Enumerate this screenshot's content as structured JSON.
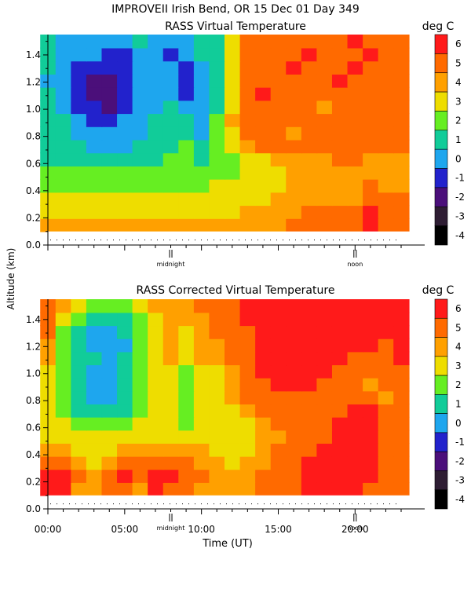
{
  "title": "IMPROVEII  Irish Bend, OR  15 Dec 01 Day 349",
  "ylabel": "Altitude (km)",
  "xlabel": "Time (UT)",
  "chart_data": [
    {
      "type": "heatmap",
      "title": "RASS Virtual Temperature",
      "colorbar_label": "deg C",
      "colorbar_ticks": [
        "6",
        "5",
        "4",
        "3",
        "2",
        "1",
        "0",
        "-1",
        "-2",
        "-3",
        "-4"
      ],
      "x_range_hours": [
        0,
        23
      ],
      "y_range_km": [
        0.1,
        1.55
      ],
      "y_ticks": [
        "0.0",
        "0.2",
        "0.4",
        "0.6",
        "0.8",
        "1.0",
        "1.2",
        "1.4"
      ],
      "markers": [
        {
          "label": "midnight",
          "hour": 8.0
        },
        {
          "label": "noon",
          "hour": 20.0
        }
      ],
      "values_desc": "Temperature field in deg C",
      "x": [
        0,
        1,
        2,
        3,
        4,
        5,
        6,
        7,
        8,
        9,
        10,
        11,
        12,
        13,
        14,
        15,
        16,
        17,
        18,
        19,
        20,
        21,
        22,
        23
      ],
      "y": [
        0.1,
        0.2,
        0.3,
        0.4,
        0.5,
        0.6,
        0.7,
        0.8,
        0.9,
        1.0,
        1.1,
        1.2,
        1.3,
        1.4,
        1.5
      ],
      "z": [
        [
          4,
          4,
          4,
          4,
          4,
          4,
          4,
          4,
          4,
          4,
          4,
          4,
          4,
          4,
          4,
          4,
          5,
          5,
          5,
          5,
          5,
          6,
          5,
          5
        ],
        [
          3,
          3,
          3,
          3,
          3,
          3,
          3,
          3,
          3,
          3,
          3,
          3,
          3,
          4,
          4,
          4,
          4,
          5,
          5,
          5,
          5,
          6,
          5,
          5
        ],
        [
          3,
          3,
          3,
          3,
          3,
          3,
          3,
          3,
          3,
          3,
          3,
          3,
          3,
          3,
          3,
          4,
          4,
          4,
          4,
          4,
          4,
          5,
          5,
          5
        ],
        [
          2,
          2,
          2,
          2,
          2,
          2,
          2,
          2,
          2,
          2,
          2,
          3,
          3,
          3,
          3,
          3,
          4,
          4,
          4,
          4,
          4,
          5,
          4,
          4
        ],
        [
          2,
          2,
          2,
          2,
          2,
          2,
          2,
          2,
          2,
          2,
          2,
          2,
          2,
          3,
          3,
          3,
          4,
          4,
          4,
          4,
          4,
          4,
          4,
          4
        ],
        [
          1,
          1,
          1,
          1,
          1,
          1,
          1,
          1,
          2,
          2,
          1,
          2,
          2,
          3,
          3,
          4,
          4,
          4,
          4,
          5,
          5,
          4,
          4,
          4
        ],
        [
          1,
          1,
          1,
          0,
          0,
          0,
          1,
          1,
          1,
          2,
          1,
          2,
          3,
          4,
          5,
          5,
          5,
          5,
          5,
          5,
          5,
          5,
          5,
          5
        ],
        [
          1,
          1,
          0,
          0,
          0,
          0,
          0,
          1,
          1,
          1,
          0,
          2,
          3,
          5,
          5,
          5,
          4,
          5,
          5,
          5,
          5,
          5,
          5,
          5
        ],
        [
          1,
          1,
          0,
          -1,
          -1,
          0,
          0,
          1,
          1,
          1,
          0,
          2,
          4,
          5,
          5,
          5,
          5,
          5,
          5,
          5,
          5,
          5,
          5,
          5
        ],
        [
          1,
          0,
          -1,
          -1,
          -2,
          -1,
          0,
          0,
          1,
          0,
          0,
          1,
          3,
          5,
          5,
          5,
          5,
          5,
          4,
          5,
          5,
          5,
          5,
          5
        ],
        [
          1,
          0,
          -1,
          -2,
          -2,
          -1,
          0,
          0,
          0,
          -1,
          0,
          1,
          3,
          5,
          6,
          5,
          5,
          5,
          5,
          5,
          5,
          5,
          5,
          5
        ],
        [
          0,
          0,
          -1,
          -2,
          -2,
          -1,
          0,
          0,
          0,
          -1,
          0,
          1,
          3,
          5,
          5,
          5,
          5,
          5,
          5,
          6,
          5,
          5,
          5,
          5
        ],
        [
          1,
          0,
          -1,
          -1,
          -1,
          -1,
          0,
          0,
          0,
          -1,
          0,
          1,
          3,
          5,
          5,
          5,
          6,
          5,
          5,
          5,
          6,
          5,
          5,
          5
        ],
        [
          1,
          0,
          0,
          0,
          -1,
          -1,
          0,
          0,
          -1,
          0,
          1,
          1,
          3,
          5,
          5,
          5,
          5,
          6,
          5,
          5,
          5,
          6,
          5,
          5
        ],
        [
          1,
          0,
          0,
          0,
          0,
          0,
          1,
          0,
          0,
          0,
          1,
          1,
          3,
          5,
          5,
          5,
          5,
          5,
          5,
          5,
          6,
          5,
          5,
          5
        ]
      ]
    },
    {
      "type": "heatmap",
      "title": "RASS Corrected Virtual Temperature",
      "colorbar_label": "deg C",
      "colorbar_ticks": [
        "6",
        "5",
        "4",
        "3",
        "2",
        "1",
        "0",
        "-1",
        "-2",
        "-3",
        "-4"
      ],
      "x_range_hours": [
        0,
        23
      ],
      "y_range_km": [
        0.1,
        1.55
      ],
      "y_ticks": [
        "0.0",
        "0.2",
        "0.4",
        "0.6",
        "0.8",
        "1.0",
        "1.2",
        "1.4"
      ],
      "x_ticks": [
        "00:00",
        "05:00",
        "10:00",
        "15:00",
        "20:00"
      ],
      "markers": [
        {
          "label": "midnight",
          "hour": 8.0
        },
        {
          "label": "noon",
          "hour": 20.0
        }
      ],
      "x": [
        0,
        1,
        2,
        3,
        4,
        5,
        6,
        7,
        8,
        9,
        10,
        11,
        12,
        13,
        14,
        15,
        16,
        17,
        18,
        19,
        20,
        21,
        22,
        23
      ],
      "y": [
        0.1,
        0.2,
        0.3,
        0.4,
        0.5,
        0.6,
        0.7,
        0.8,
        0.9,
        1.0,
        1.1,
        1.2,
        1.3,
        1.4,
        1.5
      ],
      "z": [
        [
          6,
          6,
          4,
          4,
          5,
          5,
          4,
          6,
          5,
          5,
          4,
          4,
          4,
          4,
          5,
          5,
          5,
          6,
          6,
          6,
          6,
          5,
          5,
          5
        ],
        [
          6,
          6,
          5,
          4,
          5,
          6,
          5,
          6,
          6,
          5,
          5,
          4,
          4,
          4,
          5,
          5,
          5,
          6,
          6,
          6,
          6,
          6,
          5,
          5
        ],
        [
          5,
          5,
          4,
          3,
          4,
          5,
          5,
          5,
          5,
          5,
          4,
          4,
          3,
          4,
          4,
          5,
          5,
          6,
          6,
          6,
          6,
          6,
          5,
          5
        ],
        [
          4,
          4,
          3,
          3,
          3,
          4,
          4,
          4,
          4,
          4,
          4,
          3,
          3,
          3,
          4,
          5,
          5,
          5,
          6,
          6,
          6,
          6,
          5,
          5
        ],
        [
          3,
          3,
          3,
          3,
          3,
          3,
          3,
          3,
          3,
          3,
          3,
          3,
          3,
          3,
          4,
          4,
          5,
          5,
          5,
          6,
          6,
          6,
          5,
          5
        ],
        [
          3,
          3,
          2,
          2,
          2,
          2,
          3,
          3,
          3,
          2,
          3,
          3,
          3,
          3,
          4,
          5,
          5,
          5,
          5,
          6,
          6,
          6,
          5,
          5
        ],
        [
          3,
          2,
          1,
          1,
          1,
          1,
          2,
          3,
          3,
          2,
          3,
          3,
          3,
          4,
          5,
          5,
          5,
          5,
          5,
          5,
          6,
          6,
          5,
          5
        ],
        [
          3,
          2,
          1,
          0,
          0,
          1,
          2,
          3,
          3,
          2,
          3,
          3,
          4,
          5,
          5,
          5,
          5,
          5,
          5,
          5,
          5,
          5,
          4,
          5
        ],
        [
          3,
          2,
          1,
          0,
          0,
          1,
          2,
          3,
          3,
          2,
          3,
          3,
          4,
          5,
          5,
          6,
          6,
          6,
          5,
          5,
          5,
          4,
          5,
          5
        ],
        [
          3,
          2,
          1,
          0,
          0,
          1,
          2,
          3,
          3,
          2,
          3,
          3,
          4,
          5,
          6,
          6,
          6,
          6,
          6,
          5,
          5,
          5,
          5,
          5
        ],
        [
          4,
          2,
          1,
          1,
          0,
          1,
          2,
          3,
          4,
          3,
          4,
          4,
          5,
          5,
          6,
          6,
          6,
          6,
          6,
          6,
          5,
          5,
          5,
          6
        ],
        [
          4,
          2,
          1,
          0,
          0,
          0,
          2,
          3,
          4,
          3,
          4,
          4,
          5,
          5,
          6,
          6,
          6,
          6,
          6,
          6,
          6,
          6,
          5,
          6
        ],
        [
          5,
          2,
          1,
          0,
          0,
          1,
          2,
          3,
          4,
          3,
          4,
          5,
          5,
          5,
          6,
          6,
          6,
          6,
          6,
          6,
          6,
          6,
          6,
          6
        ],
        [
          5,
          3,
          2,
          1,
          1,
          1,
          2,
          3,
          4,
          4,
          4,
          5,
          5,
          6,
          6,
          6,
          6,
          6,
          6,
          6,
          6,
          6,
          6,
          6
        ],
        [
          5,
          4,
          3,
          2,
          2,
          2,
          3,
          4,
          4,
          4,
          5,
          5,
          5,
          6,
          6,
          6,
          6,
          6,
          6,
          6,
          6,
          6,
          6,
          6
        ]
      ]
    }
  ],
  "colors": {
    "-4": "#000000",
    "-3": "#2e1d33",
    "-2": "#4b0f7a",
    "-1": "#2222cc",
    "0": "#1ea6ee",
    "1": "#11cc99",
    "2": "#66ee22",
    "3": "#eedd00",
    "4": "#ffa000",
    "5": "#ff6a00",
    "6": "#ff1a1a"
  }
}
